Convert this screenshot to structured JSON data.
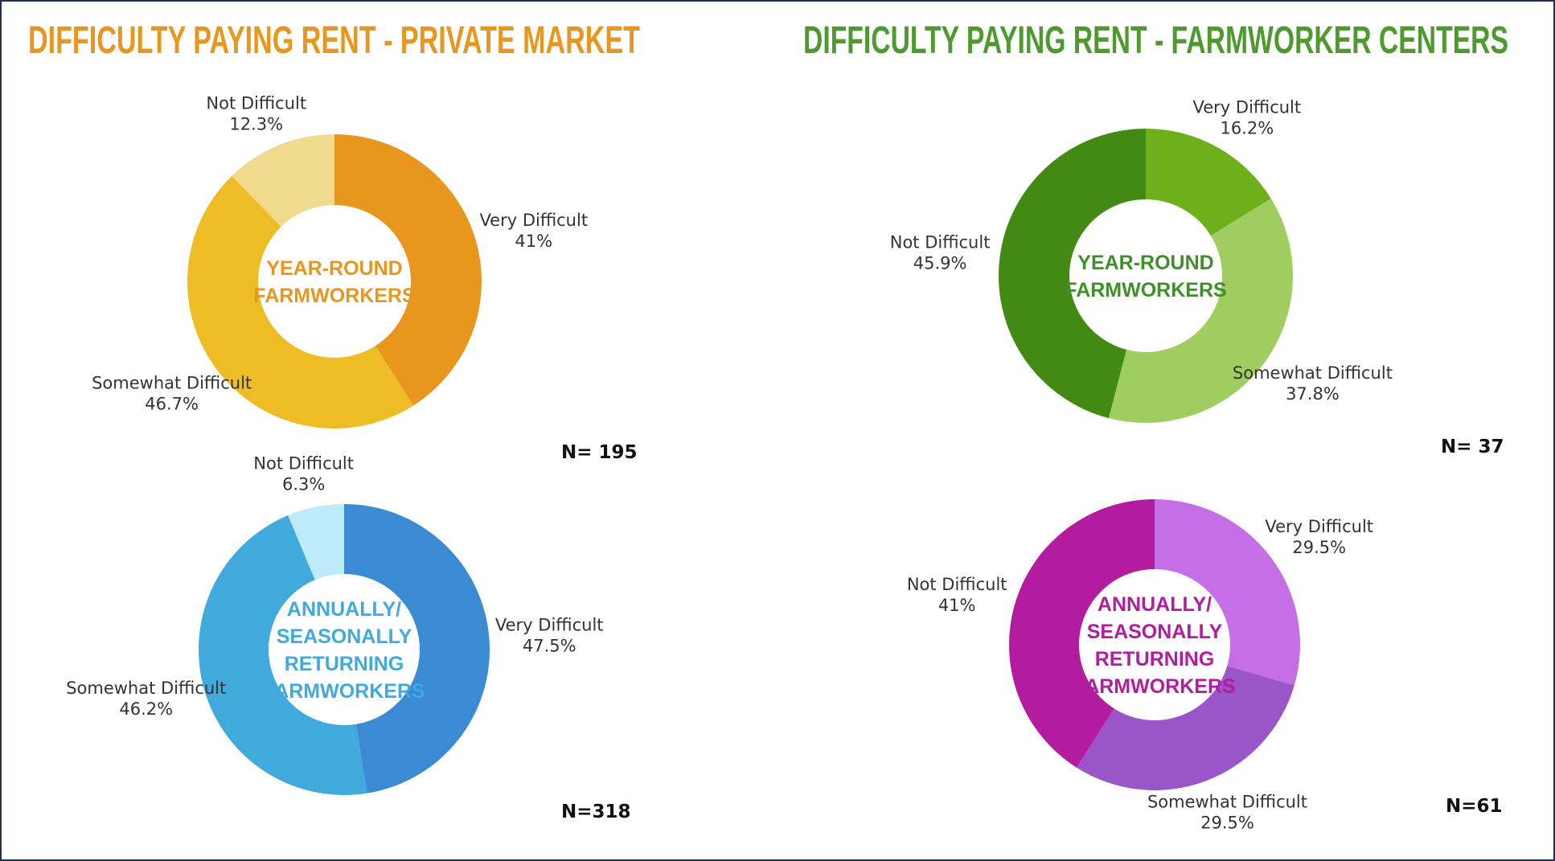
{
  "titles": [
    {
      "text": "DIFFICULTY PAYING RENT - PRIVATE MARKET",
      "color": "#E8961E"
    },
    {
      "text": "DIFFICULTY PAYING RENT - FARMWORKER CENTERS",
      "color": "#4E9A2E"
    }
  ],
  "chart_data": [
    {
      "type": "donut",
      "center_label": [
        "YEAR-ROUND",
        "FARMWORKERS"
      ],
      "center_color": "#E8961E",
      "note": "N= 195",
      "categories": [
        "Very Difficult",
        "Somewhat Difficult",
        "Not Difficult"
      ],
      "values": [
        41,
        46.7,
        12.3
      ],
      "value_labels": [
        "41%",
        "46.7%",
        "12.3%"
      ],
      "colors": [
        "#E8961E",
        "#EEBD26",
        "#F0DA8E"
      ]
    },
    {
      "type": "donut",
      "center_label": [
        "YEAR-ROUND",
        "FARMWORKERS"
      ],
      "center_color": "#3F8F2A",
      "note": "N= 37",
      "categories": [
        "Very Difficult",
        "Somewhat Difficult",
        "Not Difficult"
      ],
      "values": [
        16.2,
        37.8,
        45.9
      ],
      "value_labels": [
        "16.2%",
        "37.8%",
        "45.9%"
      ],
      "colors": [
        "#6DB01C",
        "#A0CD60",
        "#438A14"
      ]
    },
    {
      "type": "donut",
      "center_label": [
        "ANNUALLY/",
        "SEASONALLY",
        "RETURNING",
        "FARMWORKERS"
      ],
      "center_color": "#40AADD",
      "note": "N=318",
      "categories": [
        "Very Difficult",
        "Somewhat Difficult",
        "Not Difficult"
      ],
      "values": [
        47.5,
        46.2,
        6.3
      ],
      "value_labels": [
        "47.5%",
        "46.2%",
        "6.3%"
      ],
      "colors": [
        "#3A8BD4",
        "#40AADD",
        "#BDEBFA"
      ]
    },
    {
      "type": "donut",
      "center_label": [
        "ANNUALLY/",
        "SEASONALLY",
        "RETURNING",
        "FARMWORKERS"
      ],
      "center_color": "#B31C9E",
      "note": "N=61",
      "categories": [
        "Very Difficult",
        "Somewhat Difficult",
        "Not Difficult"
      ],
      "values": [
        29.5,
        29.5,
        41
      ],
      "value_labels": [
        "29.5%",
        "29.5%",
        "41%"
      ],
      "colors": [
        "#C56EE6",
        "#9A55C8",
        "#B31C9E"
      ]
    }
  ]
}
